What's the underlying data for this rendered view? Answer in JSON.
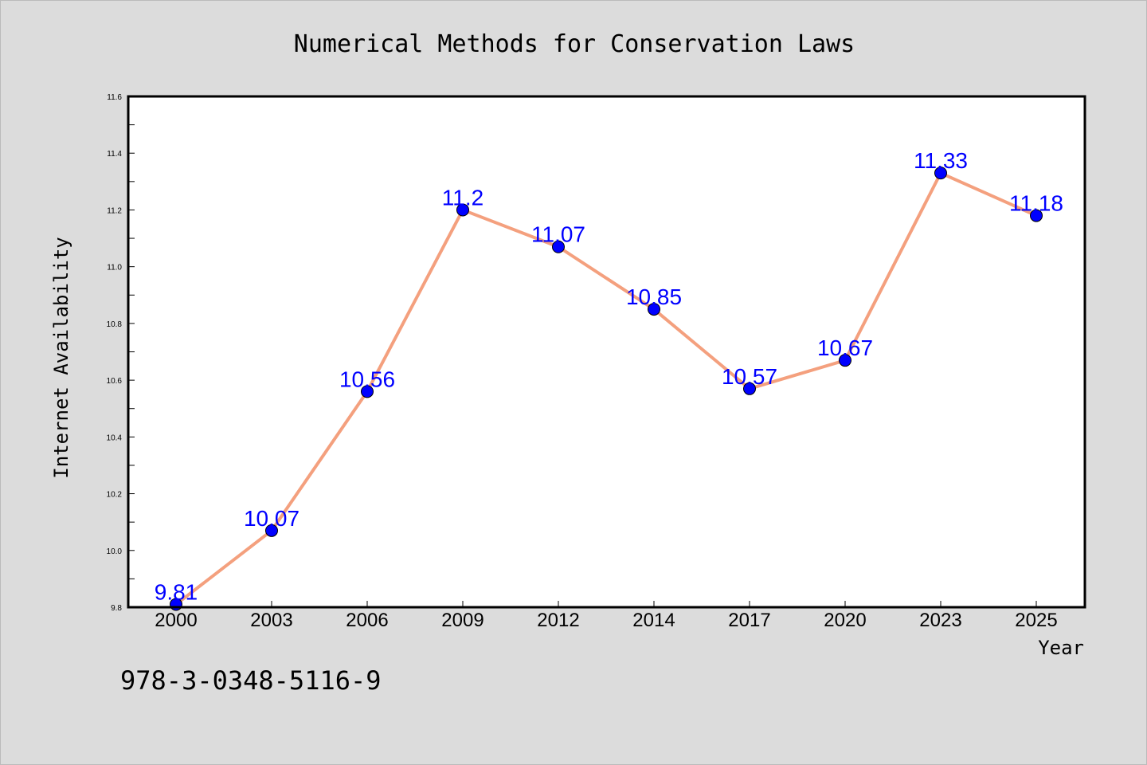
{
  "footer": {
    "isbn": "978-3-0348-5116-9"
  },
  "colors": {
    "background": "#dcdcdc",
    "plot_background": "#ffffff",
    "line": "#f4a07e",
    "marker": "#0000ff",
    "data_label": "#0000ff"
  },
  "chart_data": {
    "type": "line",
    "title": "Numerical Methods for Conservation Laws",
    "xlabel": "Year",
    "ylabel": "Internet Availability",
    "categories": [
      "2000",
      "2003",
      "2006",
      "2009",
      "2012",
      "2014",
      "2017",
      "2020",
      "2023",
      "2025"
    ],
    "series": [
      {
        "values": [
          9.81,
          10.07,
          10.56,
          11.2,
          11.07,
          10.85,
          10.57,
          10.67,
          11.33,
          11.18
        ],
        "labels": [
          "9.81",
          "10.07",
          "10.56",
          "11.2",
          "11.07",
          "10.85",
          "10.57",
          "10.67",
          "11.33",
          "11.18"
        ]
      }
    ],
    "ylim": [
      9.8,
      11.6
    ],
    "yticks": [
      "9.8",
      "10.0",
      "10.2",
      "10.4",
      "10.6",
      "10.8",
      "11.0",
      "11.2",
      "11.4",
      "11.6"
    ],
    "grid": false,
    "data_labels": true,
    "marker": "circle"
  }
}
